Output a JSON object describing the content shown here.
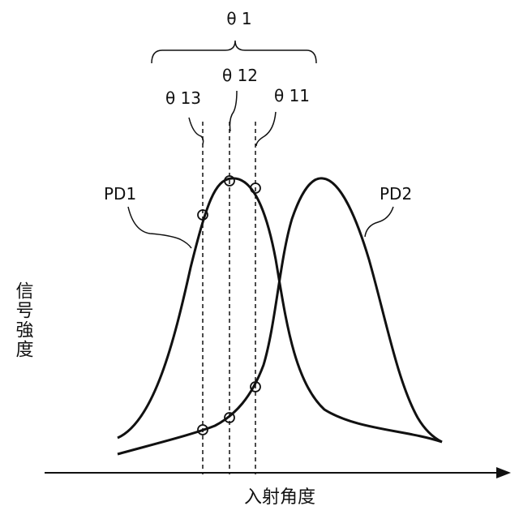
{
  "labels": {
    "theta1": "θ 1",
    "theta12": "θ 12",
    "theta13": "θ 13",
    "theta11": "θ 11",
    "pd1": "PD1",
    "pd2": "PD2"
  },
  "axes": {
    "y_label": "信号強度",
    "x_label": "入射角度"
  }
}
